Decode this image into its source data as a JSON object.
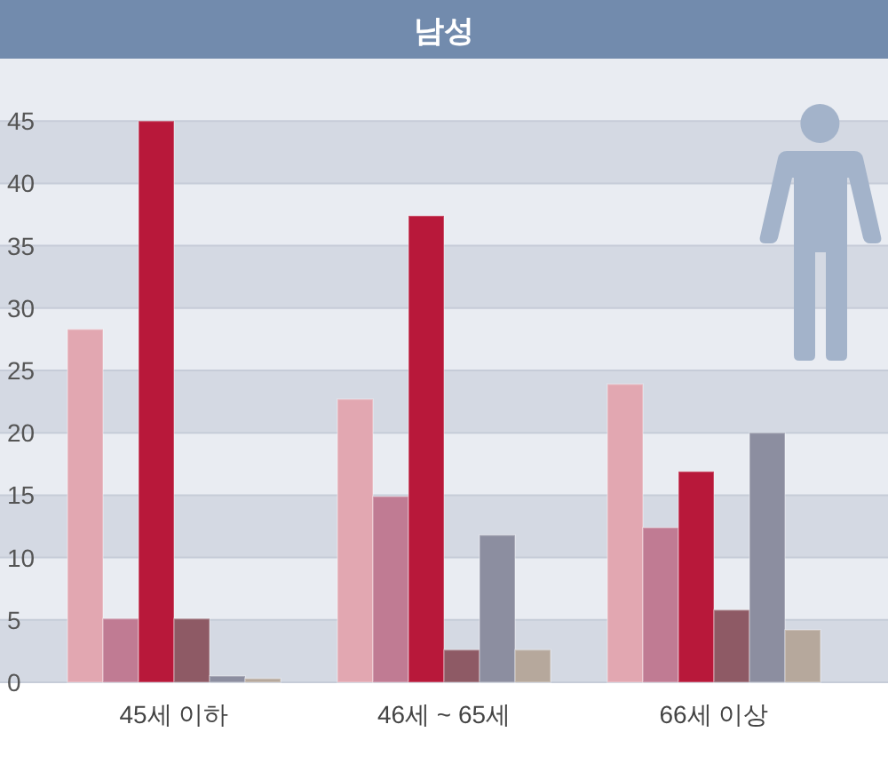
{
  "chart_data": {
    "type": "bar",
    "title": "남성",
    "categories": [
      "45세 이하",
      "46세 ~ 65세",
      "66세 이상"
    ],
    "series": [
      {
        "color": "#e2a7b1",
        "values": [
          28.3,
          22.7,
          23.9
        ]
      },
      {
        "color": "#c07b93",
        "values": [
          5.1,
          14.9,
          12.4
        ]
      },
      {
        "color": "#b8183a",
        "values": [
          45,
          37.4,
          16.9
        ]
      },
      {
        "color": "#8e5a65",
        "values": [
          5.1,
          2.6,
          5.8
        ]
      },
      {
        "color": "#8c8ea0",
        "values": [
          0.5,
          11.8,
          20
        ]
      },
      {
        "color": "#b6a89c",
        "values": [
          0.3,
          2.6,
          4.2
        ]
      }
    ],
    "ylim": [
      0,
      50
    ],
    "yticks": [
      0,
      5,
      10,
      15,
      20,
      25,
      30,
      35,
      40,
      45
    ],
    "grid": "y"
  }
}
